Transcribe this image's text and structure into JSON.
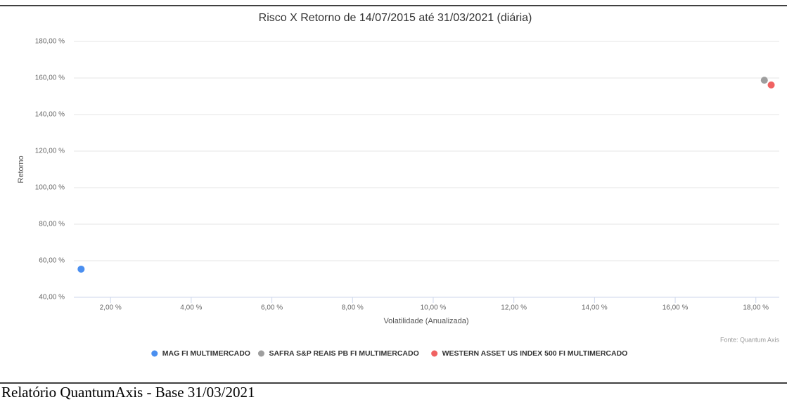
{
  "chart_data": {
    "type": "scatter",
    "title": "Risco X Retorno de 14/07/2015 até 31/03/2021 (diária)",
    "xlabel": "Volatilidade (Anualizada)",
    "ylabel": "Retorno",
    "source": "Fonte: Quantum Axis",
    "series": [
      {
        "name": "MAG FI MULTIMERCADO",
        "color": "#4a8ff0",
        "x": [
          1.27
        ],
        "values": [
          55.4
        ]
      },
      {
        "name": "SAFRA S&P REAIS PB FI MULTIMERCADO",
        "color": "#9e9e9e",
        "x": [
          18.21
        ],
        "values": [
          158.8
        ]
      },
      {
        "name": "WESTERN ASSET US INDEX 500 FI MULTIMERCADO",
        "color": "#f06262",
        "x": [
          18.38
        ],
        "values": [
          156.2
        ]
      }
    ],
    "xlim": [
      1.09,
      18.58
    ],
    "xticks": [
      {
        "value": 2,
        "label": "2,00 %"
      },
      {
        "value": 4,
        "label": "4,00 %"
      },
      {
        "value": 6,
        "label": "6,00 %"
      },
      {
        "value": 8,
        "label": "8,00 %"
      },
      {
        "value": 10,
        "label": "10,00 %"
      },
      {
        "value": 12,
        "label": "12,00 %"
      },
      {
        "value": 14,
        "label": "14,00 %"
      },
      {
        "value": 16,
        "label": "16,00 %"
      },
      {
        "value": 18,
        "label": "18,00 %"
      }
    ],
    "ylim": [
      40,
      180
    ],
    "yticks": [
      {
        "value": 40,
        "label": "40,00 %"
      },
      {
        "value": 60,
        "label": "60,00 %"
      },
      {
        "value": 80,
        "label": "80,00 %"
      },
      {
        "value": 100,
        "label": "100,00 %"
      },
      {
        "value": 120,
        "label": "120,00 %"
      },
      {
        "value": 140,
        "label": "140,00 %"
      },
      {
        "value": 160,
        "label": "160,00 %"
      },
      {
        "value": 180,
        "label": "180,00 %"
      }
    ],
    "grid": true
  },
  "footer": "Relatório QuantumAxis - Base 31/03/2021"
}
